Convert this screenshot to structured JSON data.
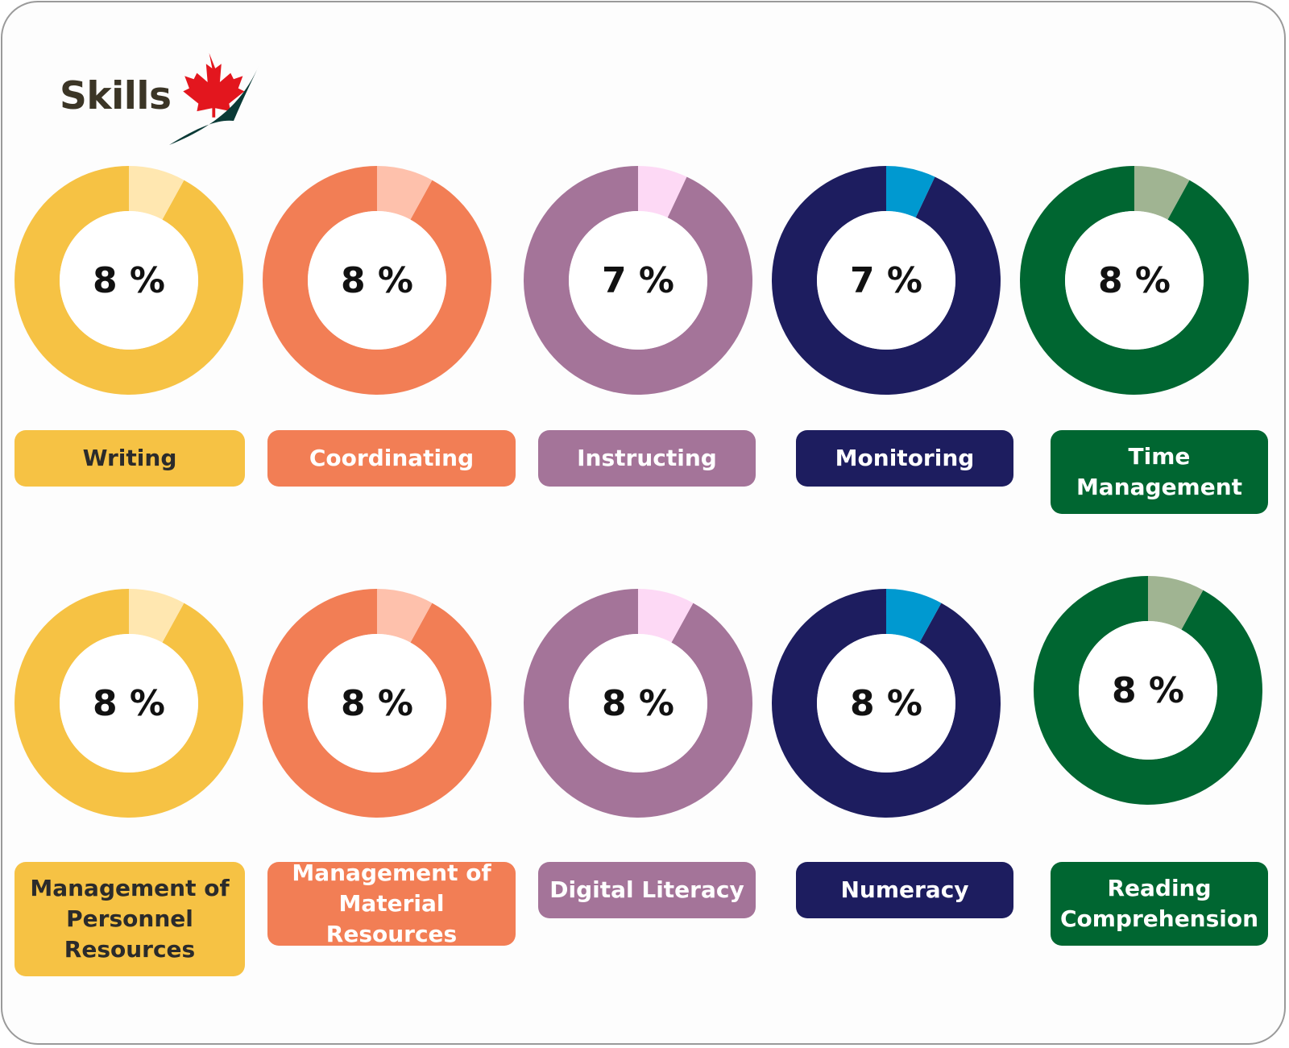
{
  "header": {
    "logo_text": "Skills"
  },
  "colors": {
    "yellow": "#F6C244",
    "yellow_light": "#FFE7B0",
    "orange": "#F27E55",
    "orange_light": "#FEC1AC",
    "purple": "#A47499",
    "purple_light": "#FDD9F5",
    "navy": "#1D1D5F",
    "navy_light": "#0099D0",
    "green": "#006631",
    "green_light": "#A0B492",
    "leaf_red": "#E3161E",
    "swoosh": "#0A3A36"
  },
  "chart_data": {
    "type": "donut",
    "items": [
      {
        "name": "Writing",
        "value": 8,
        "display": "8 %",
        "color": "#F6C244",
        "highlight": "#FFE7B0"
      },
      {
        "name": "Coordinating",
        "value": 8,
        "display": "8 %",
        "color": "#F27E55",
        "highlight": "#FEC1AC"
      },
      {
        "name": "Instructing",
        "value": 7,
        "display": "7 %",
        "color": "#A47499",
        "highlight": "#FDD9F5"
      },
      {
        "name": "Monitoring",
        "value": 7,
        "display": "7 %",
        "color": "#1D1D5F",
        "highlight": "#0099D0"
      },
      {
        "name": "Time Management",
        "value": 8,
        "display": "8 %",
        "color": "#006631",
        "highlight": "#A0B492"
      },
      {
        "name": "Management of Personnel Resources",
        "value": 8,
        "display": "8 %",
        "color": "#F6C244",
        "highlight": "#FFE7B0"
      },
      {
        "name": "Management of Material Resources",
        "value": 8,
        "display": "8 %",
        "color": "#F27E55",
        "highlight": "#FEC1AC"
      },
      {
        "name": "Digital Literacy",
        "value": 8,
        "display": "8 %",
        "color": "#A47499",
        "highlight": "#FDD9F5"
      },
      {
        "name": "Numeracy",
        "value": 8,
        "display": "8 %",
        "color": "#1D1D5F",
        "highlight": "#0099D0"
      },
      {
        "name": "Reading Comprehension",
        "value": 8,
        "display": "8 %",
        "color": "#006631",
        "highlight": "#A0B492"
      }
    ]
  },
  "labels": [
    {
      "lines": [
        "Writing"
      ],
      "text_color": "#2b2b2b"
    },
    {
      "lines": [
        "Coordinating"
      ],
      "text_color": "#ffffff"
    },
    {
      "lines": [
        "Instructing"
      ],
      "text_color": "#ffffff"
    },
    {
      "lines": [
        "Monitoring"
      ],
      "text_color": "#ffffff"
    },
    {
      "lines": [
        "Time",
        "Management"
      ],
      "text_color": "#ffffff"
    },
    {
      "lines": [
        "Management of",
        "Personnel",
        "Resources"
      ],
      "text_color": "#2b2b2b"
    },
    {
      "lines": [
        "Management of",
        "Material Resources"
      ],
      "text_color": "#ffffff"
    },
    {
      "lines": [
        "Digital Literacy"
      ],
      "text_color": "#ffffff"
    },
    {
      "lines": [
        "Numeracy"
      ],
      "text_color": "#ffffff"
    },
    {
      "lines": [
        "Reading",
        "Comprehension"
      ],
      "text_color": "#ffffff"
    }
  ]
}
